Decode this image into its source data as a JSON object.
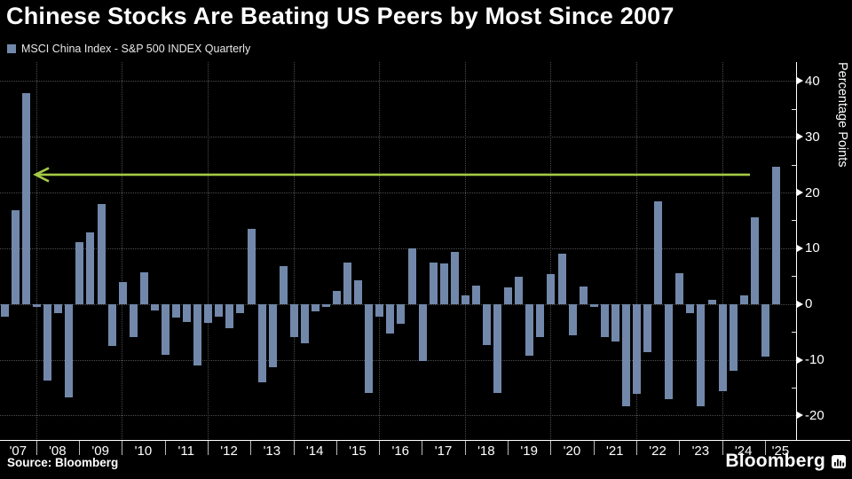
{
  "header": {
    "title": "Chinese Stocks Are Beating US Peers by Most Since 2007",
    "legend": "MSCI China Index - S&P 500 INDEX Quarterly"
  },
  "y_axis": {
    "label": "Percentage Points",
    "major_ticks": [
      40,
      30,
      20,
      10,
      0,
      -10,
      -20
    ],
    "minor_ticks": [
      35,
      25,
      15,
      5,
      -5,
      -15
    ]
  },
  "x_axis": {
    "years": [
      "'07",
      "'08",
      "'09",
      "'10",
      "'11",
      "'12",
      "'13",
      "'14",
      "'15",
      "'16",
      "'17",
      "'18",
      "'19",
      "'20",
      "'21",
      "'22",
      "'23",
      "'24",
      "'25"
    ]
  },
  "chart_data": {
    "type": "bar",
    "title": "Chinese Stocks Are Beating US Peers by Most Since 2007",
    "series_name": "MSCI China Index - S&P 500 INDEX Quarterly",
    "xlabel": "",
    "ylabel": "Percentage Points",
    "start_quarter": "2007 Q1",
    "end_quarter": "2025 Q1",
    "frequency": "quarterly",
    "ylim": [
      -24,
      43
    ],
    "grid": true,
    "bar_color": "#7288aa",
    "values": [
      -2.2,
      16.9,
      37.9,
      -0.6,
      -13.8,
      -1.6,
      -16.7,
      11.1,
      12.8,
      17.9,
      -7.5,
      4.0,
      -5.9,
      5.7,
      -1.2,
      -9.1,
      -2.5,
      -3.2,
      -11.1,
      -3.4,
      -2.3,
      -4.4,
      -1.7,
      13.5,
      -14.1,
      -11.3,
      6.8,
      -6.0,
      -7.0,
      -1.3,
      -0.5,
      2.4,
      7.4,
      4.3,
      -16.0,
      -2.3,
      -5.3,
      -3.6,
      9.9,
      -10.3,
      7.4,
      7.2,
      9.4,
      1.6,
      3.3,
      -7.3,
      -16.0,
      2.9,
      4.9,
      -9.3,
      -6.0,
      5.3,
      9.0,
      -5.6,
      3.2,
      -0.6,
      -5.9,
      -6.7,
      -18.4,
      -16.2,
      -8.6,
      18.4,
      -17.1,
      5.5,
      -1.7,
      -18.4,
      0.8,
      -15.6,
      -12.0,
      1.6,
      15.5,
      -9.4,
      24.6
    ],
    "annotation": {
      "type": "arrow",
      "value": 23.2,
      "direction": "left",
      "color": "#a4ca45",
      "meaning": "points from latest quarter back to 2007 peak"
    }
  },
  "footer": {
    "source": "Source: Bloomberg",
    "brand": "Bloomberg"
  }
}
